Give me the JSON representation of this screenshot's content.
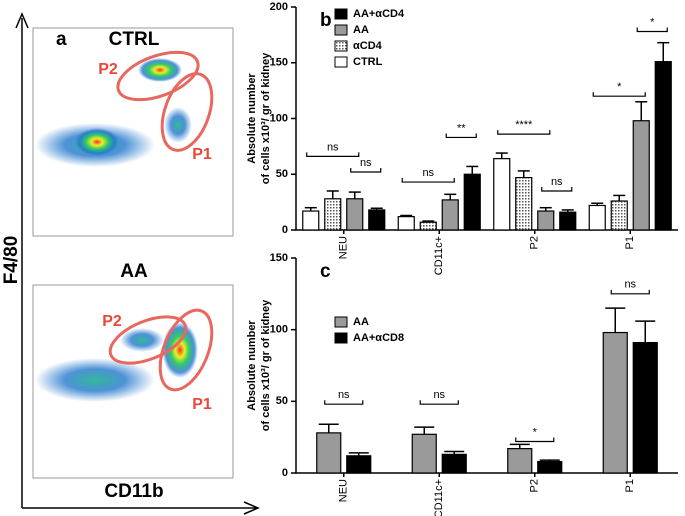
{
  "panel_a": {
    "label": "a",
    "y_axis": "F4/80",
    "x_axis": "CD11b",
    "plots": [
      {
        "title": "CTRL",
        "gates": [
          "P2",
          "P1"
        ]
      },
      {
        "title": "AA",
        "gates": [
          "P2",
          "P1"
        ]
      }
    ]
  },
  "chart_data": [
    {
      "type": "bar",
      "panel": "b",
      "y_label": [
        "Absolute number",
        "of cells x10³/ gr of kidney"
      ],
      "categories": [
        "NEU",
        "CD11c+",
        "P2",
        "P1"
      ],
      "series": [
        {
          "name": "CTRL",
          "color": "#ffffff",
          "values": [
            17,
            12,
            64,
            22
          ],
          "errors": [
            3,
            1,
            5,
            2
          ]
        },
        {
          "name": "αCD4",
          "color": "#ffffff",
          "pattern": "dots",
          "values": [
            28,
            7,
            47,
            26
          ],
          "errors": [
            7,
            1,
            6,
            5
          ]
        },
        {
          "name": "AA",
          "color": "#9a9a9a",
          "values": [
            28,
            27,
            17,
            98
          ],
          "errors": [
            6,
            5,
            3,
            17
          ]
        },
        {
          "name": "AA+αCD4",
          "color": "#000000",
          "values": [
            18,
            50,
            16,
            151
          ],
          "errors": [
            1.5,
            7,
            2,
            17
          ]
        }
      ],
      "ylim": [
        0,
        200
      ],
      "yticks": [
        0,
        50,
        100,
        150,
        200
      ],
      "annotations": [
        "ns",
        "ns",
        "ns",
        "**",
        "****",
        "ns",
        "*",
        "*"
      ]
    },
    {
      "type": "bar",
      "panel": "c",
      "y_label": [
        "Absolute number",
        "of cells x10³/ gr of kidney"
      ],
      "categories": [
        "NEU",
        "CD11c+",
        "P2",
        "P1"
      ],
      "series": [
        {
          "name": "AA",
          "color": "#9a9a9a",
          "values": [
            28,
            27,
            17,
            98
          ],
          "errors": [
            6,
            5,
            3,
            17
          ]
        },
        {
          "name": "AA+αCD8",
          "color": "#000000",
          "values": [
            12,
            13,
            8,
            91
          ],
          "errors": [
            2,
            2,
            1,
            15
          ]
        }
      ],
      "ylim": [
        0,
        150
      ],
      "yticks": [
        0,
        50,
        100,
        150
      ],
      "annotations": [
        "ns",
        "ns",
        "*",
        "ns"
      ]
    }
  ]
}
